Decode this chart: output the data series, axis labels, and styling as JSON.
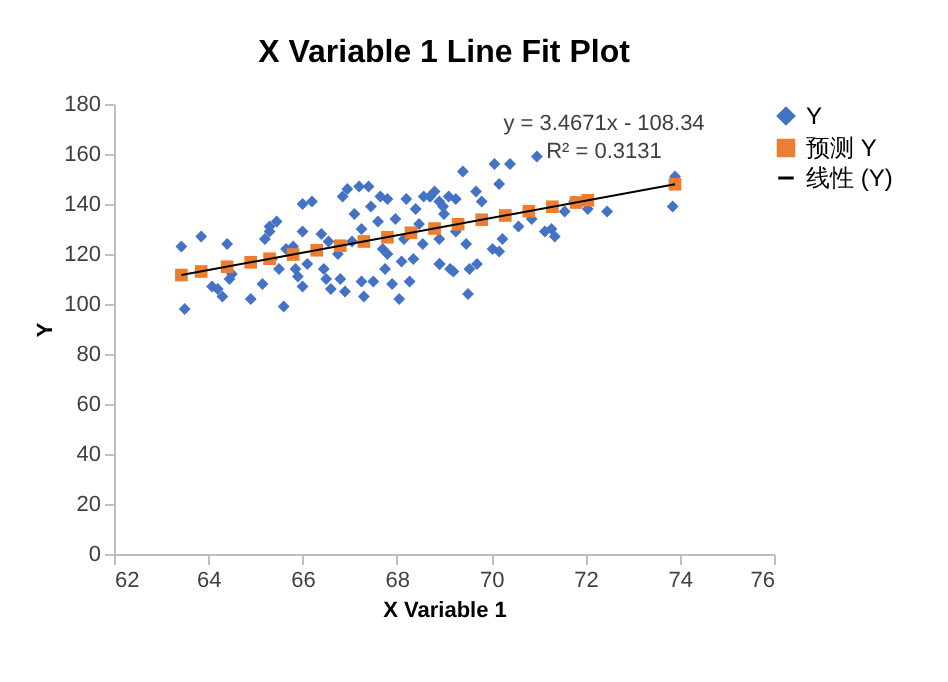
{
  "chart_data": {
    "type": "scatter",
    "title": "X Variable 1 Line Fit  Plot",
    "xlabel": "X Variable 1",
    "ylabel": "Y",
    "xlim": [
      62,
      76
    ],
    "xticks": [
      62,
      64,
      66,
      68,
      70,
      72,
      74,
      76
    ],
    "ylim": [
      0,
      180
    ],
    "yticks": [
      0,
      20,
      40,
      60,
      80,
      100,
      120,
      140,
      160,
      180
    ],
    "grid": false,
    "legend": "right",
    "annotations": [
      "y = 3.4671x - 108.34",
      "R² = 0.3131"
    ],
    "series": [
      {
        "name": "Y",
        "color": "#4472c4",
        "marker": "diamond",
        "x": [
          63.43,
          63.5,
          63.85,
          64.08,
          64.2,
          64.3,
          64.4,
          64.45,
          64.5,
          64.9,
          65.2,
          65.3,
          65.3,
          65.45,
          65.15,
          65.35,
          65.5,
          65.6,
          65.65,
          65.8,
          65.85,
          65.9,
          66.0,
          66.0,
          66.0,
          66.2,
          66.1,
          66.4,
          66.45,
          66.5,
          66.55,
          66.6,
          66.75,
          66.8,
          66.85,
          66.9,
          66.95,
          67.05,
          67.1,
          67.2,
          67.25,
          67.25,
          67.3,
          67.4,
          67.45,
          67.5,
          67.6,
          67.65,
          67.7,
          67.75,
          67.8,
          67.8,
          67.9,
          67.97,
          68.05,
          68.1,
          68.15,
          68.2,
          68.27,
          68.35,
          68.4,
          68.47,
          68.55,
          68.7,
          68.8,
          68.9,
          69.0,
          68.9,
          69.1,
          69.2,
          69.4,
          70.07,
          70.4,
          70.97,
          68.71,
          68.98,
          69.25,
          69.68,
          69.8,
          70.17,
          68.9,
          69.25,
          69.47,
          69.54,
          69.7,
          69.51,
          70.03,
          70.17,
          70.24,
          70.58,
          70.86,
          71.14,
          71.28,
          71.35,
          71.56,
          71.76,
          72.05,
          72.46,
          73.9,
          73.85,
          68.91,
          69.13,
          68.57
        ],
        "values": [
          123,
          98,
          127,
          107,
          106,
          103,
          124,
          110,
          112,
          102,
          126,
          129,
          131,
          133,
          108,
          118,
          114,
          99,
          122,
          123,
          114,
          111,
          107,
          129,
          140,
          141,
          116,
          128,
          114,
          110,
          125,
          106,
          120,
          110,
          143,
          105,
          146,
          125,
          136,
          147,
          130,
          109,
          103,
          147,
          139,
          109,
          133,
          143,
          122,
          114,
          142,
          120,
          108,
          134,
          102,
          117,
          126,
          142,
          109,
          118,
          138,
          132,
          124,
          143,
          145,
          141,
          136,
          116,
          143,
          113,
          153,
          156,
          156,
          159,
          143,
          139,
          142,
          145,
          141,
          148,
          126,
          129,
          124,
          114,
          116,
          104,
          122,
          121,
          126,
          131,
          134,
          129,
          130,
          127,
          137,
          141,
          138,
          137,
          151,
          139,
          116,
          114,
          143
        ]
      },
      {
        "name": "预测 Y",
        "color": "#ed7d31",
        "marker": "square",
        "x": [
          63.43,
          63.85,
          64.4,
          64.9,
          65.3,
          65.8,
          66.3,
          66.8,
          67.3,
          67.8,
          68.3,
          68.8,
          69.3,
          69.8,
          70.3,
          70.8,
          71.3,
          71.8,
          72.05,
          73.9
        ],
        "values": [
          111.6,
          113.0,
          114.9,
          116.7,
          118.1,
          119.8,
          121.5,
          123.3,
          125.0,
          126.7,
          128.5,
          130.2,
          131.9,
          133.7,
          135.4,
          137.1,
          138.9,
          140.6,
          141.5,
          147.9
        ]
      },
      {
        "name": "线性 (Y)",
        "type": "line",
        "color": "#000000",
        "line_style": "solid",
        "x": [
          63.43,
          73.9
        ],
        "values": [
          111.6,
          147.9
        ]
      }
    ]
  }
}
